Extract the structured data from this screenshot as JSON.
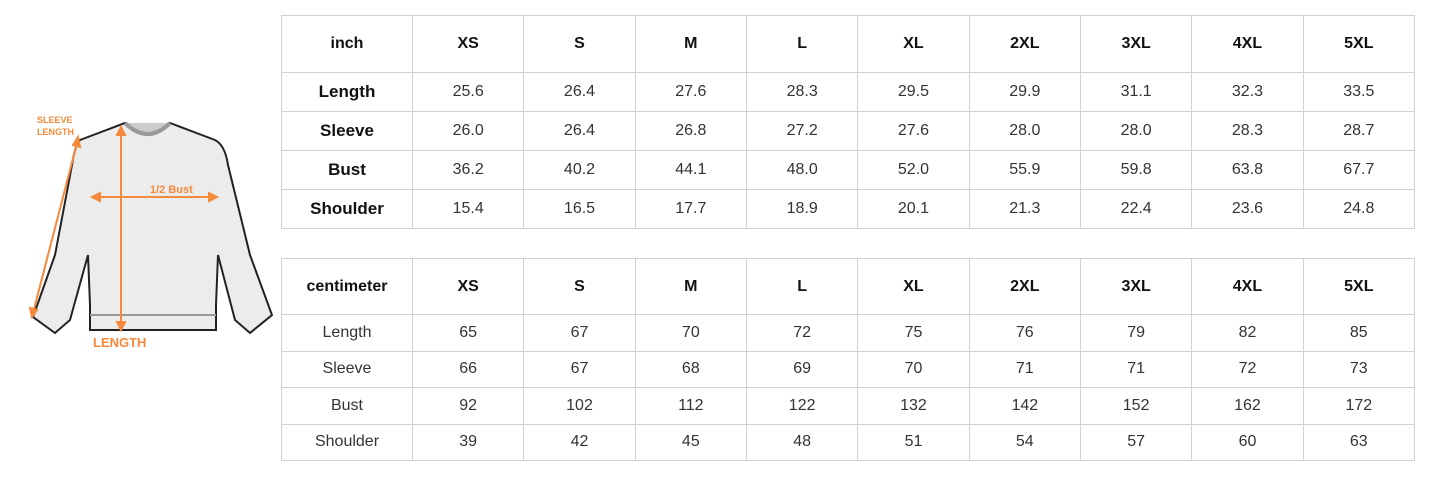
{
  "diagram": {
    "sleeve_label_1": "SLEEVE",
    "sleeve_label_2": "LENGTH",
    "bust_label": "1/2 Bust",
    "length_label": "LENGTH",
    "accent": "#f58a3c"
  },
  "sizes": [
    "XS",
    "S",
    "M",
    "L",
    "XL",
    "2XL",
    "3XL",
    "4XL",
    "5XL"
  ],
  "inch_table": {
    "unit": "inch",
    "rows": [
      {
        "label": "Length",
        "values": [
          "25.6",
          "26.4",
          "27.6",
          "28.3",
          "29.5",
          "29.9",
          "31.1",
          "32.3",
          "33.5"
        ]
      },
      {
        "label": "Sleeve",
        "values": [
          "26.0",
          "26.4",
          "26.8",
          "27.2",
          "27.6",
          "28.0",
          "28.0",
          "28.3",
          "28.7"
        ]
      },
      {
        "label": "Bust",
        "values": [
          "36.2",
          "40.2",
          "44.1",
          "48.0",
          "52.0",
          "55.9",
          "59.8",
          "63.8",
          "67.7"
        ]
      },
      {
        "label": "Shoulder",
        "values": [
          "15.4",
          "16.5",
          "17.7",
          "18.9",
          "20.1",
          "21.3",
          "22.4",
          "23.6",
          "24.8"
        ]
      }
    ]
  },
  "cm_table": {
    "unit": "centimeter",
    "rows": [
      {
        "label": "Length",
        "values": [
          "65",
          "67",
          "70",
          "72",
          "75",
          "76",
          "79",
          "82",
          "85"
        ]
      },
      {
        "label": "Sleeve",
        "values": [
          "66",
          "67",
          "68",
          "69",
          "70",
          "71",
          "71",
          "72",
          "73"
        ]
      },
      {
        "label": "Bust",
        "values": [
          "92",
          "102",
          "112",
          "122",
          "132",
          "142",
          "152",
          "162",
          "172"
        ]
      },
      {
        "label": "Shoulder",
        "values": [
          "39",
          "42",
          "45",
          "48",
          "51",
          "54",
          "57",
          "60",
          "63"
        ]
      }
    ]
  }
}
